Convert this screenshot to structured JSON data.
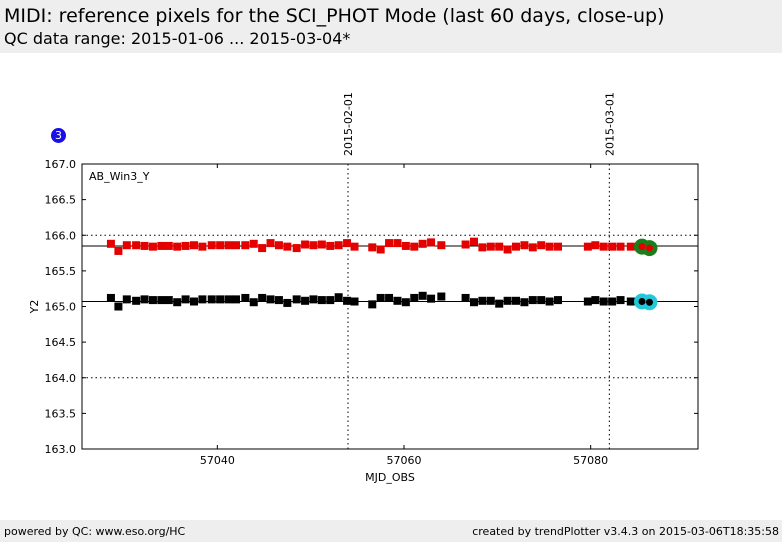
{
  "header": {
    "title": "MIDI: reference pixels for the SCI_PHOT Mode (last 60 days, close-up)",
    "subtitle": "QC data range: 2015-01-06 ... 2015-03-04*"
  },
  "badge": {
    "label": "3"
  },
  "footer": {
    "left": "powered by QC: www.eso.org/HC",
    "right": "created by trendPlotter v3.4.3 on 2015-03-06T18:35:58"
  },
  "colors": {
    "series_red": "#e50000",
    "series_black": "#000000",
    "recent_green": "#1a7f1a",
    "recent_cyan": "#22c8d8",
    "badge": "#1a10e6"
  },
  "chart_data": {
    "type": "scatter",
    "xlabel": "MJD_OBS",
    "ylabel": "Y2",
    "xlim": [
      57025.5,
      57091.5
    ],
    "ylim": [
      163.0,
      167.0
    ],
    "xticks": [
      57040,
      57060,
      57080
    ],
    "yticks": [
      163.0,
      163.5,
      164.0,
      164.5,
      165.0,
      165.5,
      166.0,
      166.5,
      167.0
    ],
    "panel_label": "AB_Win3_Y",
    "hlines": [
      {
        "y": 165.85,
        "style": "solid"
      },
      {
        "y": 165.07,
        "style": "solid"
      },
      {
        "y": 166.0,
        "style": "dotted"
      },
      {
        "y": 164.0,
        "style": "dotted"
      }
    ],
    "date_markers": [
      {
        "x": 57054.0,
        "label": "2015-02-01"
      },
      {
        "x": 57082.0,
        "label": "2015-03-01"
      }
    ],
    "series": [
      {
        "marker": "square",
        "color": "#e50000",
        "x": [
          57028.6,
          57029.4,
          57030.3,
          57031.3,
          57032.2,
          57033.1,
          57034.0,
          57034.8,
          57035.7,
          57036.6,
          57037.5,
          57038.4,
          57039.4,
          57040.3,
          57041.2,
          57042.0,
          57043.0,
          57043.9,
          57044.8,
          57045.7,
          57046.6,
          57047.5,
          57048.5,
          57049.4,
          57050.3,
          57051.2,
          57052.1,
          57053.0,
          57053.9,
          57054.7,
          57056.6,
          57057.5,
          57058.4,
          57059.3,
          57060.2,
          57061.1,
          57062.0,
          57062.9,
          57064.0,
          57066.6,
          57067.5,
          57068.4,
          57069.3,
          57070.2,
          57071.1,
          57072.0,
          57072.9,
          57073.8,
          57074.7,
          57075.6,
          57076.5,
          57079.7,
          57080.5,
          57081.4,
          57082.3,
          57083.2,
          57084.3
        ],
        "y": [
          165.88,
          165.78,
          165.86,
          165.86,
          165.85,
          165.84,
          165.85,
          165.85,
          165.84,
          165.85,
          165.86,
          165.84,
          165.86,
          165.86,
          165.86,
          165.86,
          165.86,
          165.88,
          165.82,
          165.89,
          165.86,
          165.84,
          165.82,
          165.87,
          165.86,
          165.87,
          165.85,
          165.86,
          165.89,
          165.84,
          165.83,
          165.8,
          165.89,
          165.89,
          165.85,
          165.84,
          165.88,
          165.9,
          165.86,
          165.87,
          165.91,
          165.83,
          165.84,
          165.84,
          165.8,
          165.84,
          165.86,
          165.83,
          165.86,
          165.84,
          165.84,
          165.84,
          165.86,
          165.84,
          165.84,
          165.84,
          165.84
        ]
      },
      {
        "marker": "square",
        "color": "#000000",
        "x": [
          57028.6,
          57029.4,
          57030.3,
          57031.3,
          57032.2,
          57033.1,
          57034.0,
          57034.8,
          57035.7,
          57036.6,
          57037.5,
          57038.4,
          57039.4,
          57040.3,
          57041.2,
          57042.0,
          57043.0,
          57043.9,
          57044.8,
          57045.7,
          57046.6,
          57047.5,
          57048.5,
          57049.4,
          57050.3,
          57051.2,
          57052.1,
          57053.0,
          57053.9,
          57054.7,
          57056.6,
          57057.5,
          57058.4,
          57059.3,
          57060.2,
          57061.1,
          57062.0,
          57062.9,
          57064.0,
          57066.6,
          57067.5,
          57068.4,
          57069.3,
          57070.2,
          57071.1,
          57072.0,
          57072.9,
          57073.8,
          57074.7,
          57075.6,
          57076.5,
          57079.7,
          57080.5,
          57081.4,
          57082.3,
          57083.2,
          57084.3
        ],
        "y": [
          165.12,
          165.0,
          165.1,
          165.08,
          165.1,
          165.09,
          165.09,
          165.09,
          165.06,
          165.1,
          165.07,
          165.1,
          165.1,
          165.1,
          165.1,
          165.1,
          165.12,
          165.06,
          165.12,
          165.1,
          165.09,
          165.05,
          165.1,
          165.08,
          165.1,
          165.09,
          165.09,
          165.13,
          165.08,
          165.07,
          165.03,
          165.12,
          165.12,
          165.08,
          165.06,
          165.12,
          165.15,
          165.11,
          165.14,
          165.12,
          165.06,
          165.08,
          165.08,
          165.04,
          165.08,
          165.08,
          165.06,
          165.09,
          165.09,
          165.07,
          165.09,
          165.07,
          165.09,
          165.07,
          165.07,
          165.09,
          165.07
        ]
      },
      {
        "marker": "circle-large",
        "color": "#1a7f1a",
        "x": [
          57085.5,
          57086.3
        ],
        "y": [
          165.84,
          165.82
        ]
      },
      {
        "marker": "circle-large",
        "color": "#22c8d8",
        "x": [
          57085.5,
          57086.3
        ],
        "y": [
          165.07,
          165.06
        ]
      },
      {
        "marker": "dot",
        "color": "#e50000",
        "x": [
          57085.5,
          57086.3
        ],
        "y": [
          165.84,
          165.82
        ]
      },
      {
        "marker": "dot",
        "color": "#000000",
        "x": [
          57085.5,
          57086.3
        ],
        "y": [
          165.07,
          165.06
        ]
      }
    ]
  }
}
